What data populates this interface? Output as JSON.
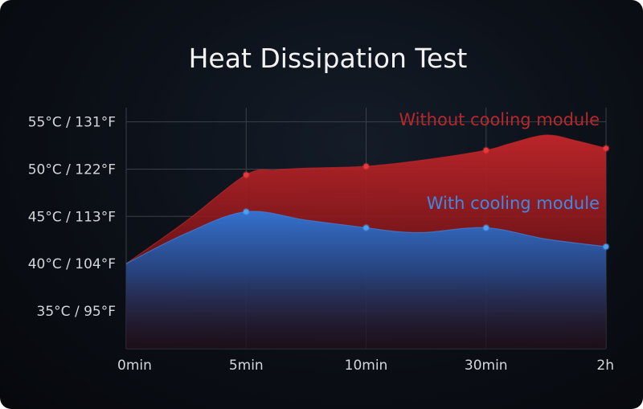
{
  "chart_data": {
    "type": "area",
    "title": "Heat Dissipation Test",
    "categories": [
      "0min",
      "5min",
      "10min",
      "30min",
      "2h"
    ],
    "y_tick_labels": [
      "55°C / 131°F",
      "50°C / 122°F",
      "45°C / 113°F",
      "40°C / 104°F",
      "35°C / 95°F"
    ],
    "y_tick_values": [
      55,
      50,
      45,
      40,
      35
    ],
    "ylim": [
      31,
      56.5
    ],
    "grid": true,
    "series": [
      {
        "name": "Without cooling module",
        "color": "#c0282a",
        "values": [
          40,
          49.4,
          50.3,
          52.0,
          52.2
        ],
        "curve_x": [
          0,
          0.5,
          1,
          1.25,
          1.5,
          2,
          2.5,
          3,
          3.2,
          3.5,
          3.75,
          4
        ],
        "curve_y": [
          40,
          44.5,
          49.4,
          49.9,
          50.1,
          50.3,
          51.0,
          52.0,
          52.7,
          53.6,
          53.0,
          52.2
        ]
      },
      {
        "name": "With cooling module",
        "color": "#3a86e0",
        "values": [
          40,
          45.5,
          43.8,
          43.8,
          41.8
        ],
        "curve_x": [
          0,
          0.5,
          1,
          1.5,
          2,
          2.25,
          2.5,
          3,
          3.5,
          4
        ],
        "curve_y": [
          40,
          43.2,
          45.5,
          44.6,
          43.8,
          43.4,
          43.3,
          43.8,
          42.6,
          41.8
        ]
      }
    ]
  }
}
